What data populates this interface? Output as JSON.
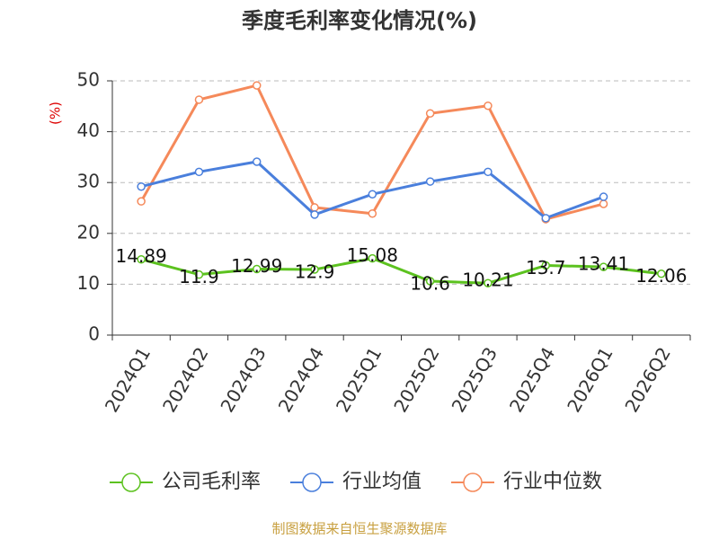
{
  "chart_data": {
    "type": "line",
    "title": "季度毛利率变化情况(%)",
    "y_label": "(%)",
    "source": "制图数据来自恒生聚源数据库",
    "categories": [
      "2024Q1",
      "2024Q2",
      "2024Q3",
      "2024Q4",
      "2025Q1",
      "2025Q2",
      "2025Q3",
      "2025Q4",
      "2026Q1",
      "2026Q2"
    ],
    "series": [
      {
        "name": "公司毛利率",
        "color": "#5cc21f",
        "values": [
          14.89,
          11.9,
          12.99,
          12.9,
          15.08,
          10.6,
          10.21,
          13.7,
          13.41,
          12.06
        ],
        "show_labels": true
      },
      {
        "name": "行业均值",
        "color": "#4a7fdc",
        "values": [
          29.2,
          32.1,
          34.1,
          23.7,
          27.7,
          30.2,
          32.1,
          23.0,
          27.2,
          null
        ]
      },
      {
        "name": "行业中位数",
        "color": "#f5895a",
        "values": [
          26.3,
          46.3,
          49.1,
          25.1,
          23.9,
          43.6,
          45.1,
          22.8,
          25.8,
          null
        ]
      }
    ],
    "ylim": [
      0,
      50
    ],
    "yticks": [
      0,
      10,
      20,
      30,
      40,
      50
    ],
    "grid": true
  }
}
